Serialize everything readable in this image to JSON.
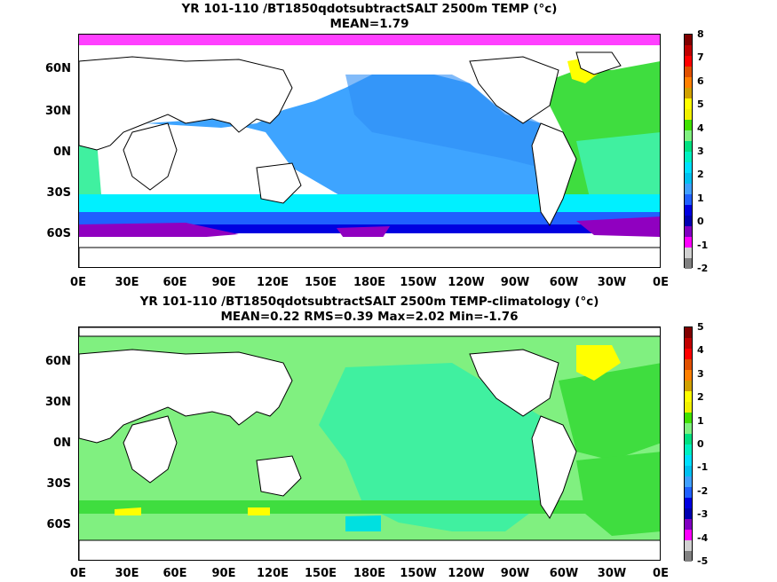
{
  "panels": [
    {
      "title": "YR 101-110 /BT1850qdotsubtractSALT 2500m TEMP (°c)",
      "stats": "MEAN=1.79",
      "colorbar_labels": [
        "8",
        "7",
        "6",
        "5",
        "4",
        "3",
        "2",
        "1",
        "0",
        "-1",
        "-2"
      ],
      "colorbar_colors": [
        "#800000",
        "#c00000",
        "#ff0000",
        "#e05000",
        "#ff8000",
        "#d0a000",
        "#ffff00",
        "#f0f000",
        "#40e000",
        "#80f080",
        "#00e080",
        "#00f0c0",
        "#00e0ff",
        "#00c0f0",
        "#40a0ff",
        "#2060ff",
        "#0000e0",
        "#0000b0",
        "#8000c0",
        "#ff00ff",
        "#d0d0d0",
        "#808080"
      ]
    },
    {
      "title": "YR 101-110 /BT1850qdotsubtractSALT 2500m TEMP-climatology (°c)",
      "stats": "MEAN=0.22   RMS=0.39   Max=2.02   Min=-1.76",
      "colorbar_labels": [
        "5",
        "4",
        "3",
        "2",
        "1",
        "0",
        "-1",
        "-2",
        "-3",
        "-4",
        "-5"
      ],
      "colorbar_colors": [
        "#800000",
        "#c00000",
        "#ff0000",
        "#e05000",
        "#ff8000",
        "#d0a000",
        "#ffff00",
        "#f0f000",
        "#40e000",
        "#80f080",
        "#00e080",
        "#00f0c0",
        "#00e0ff",
        "#00c0f0",
        "#40a0ff",
        "#2060ff",
        "#0000e0",
        "#0000b0",
        "#8000c0",
        "#ff00ff",
        "#d0d0d0",
        "#808080"
      ]
    }
  ],
  "lat_labels": [
    "60N",
    "30N",
    "0N",
    "30S",
    "60S"
  ],
  "lon_labels": [
    "0E",
    "30E",
    "60E",
    "90E",
    "120E",
    "150E",
    "180E",
    "150W",
    "120W",
    "90W",
    "60W",
    "30W",
    "0E"
  ]
}
